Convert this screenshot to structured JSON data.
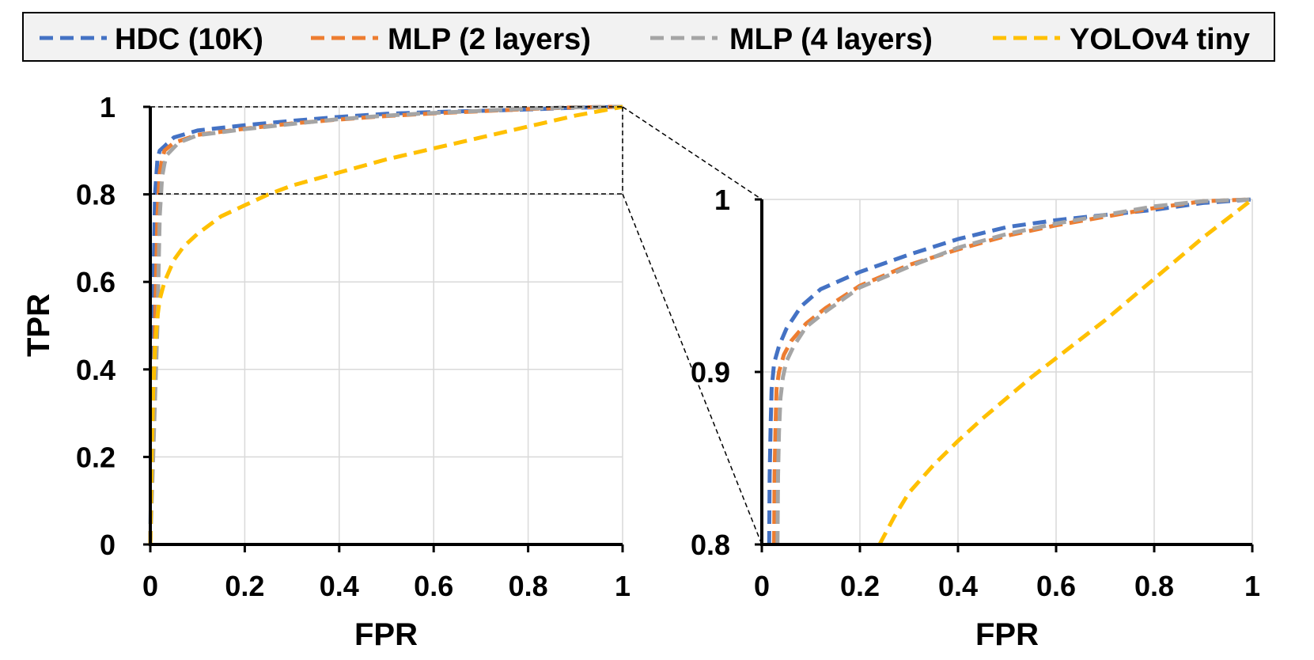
{
  "legend": {
    "entries": [
      {
        "label": "HDC (10K)",
        "color": "#4472C4"
      },
      {
        "label": "MLP (2 layers)",
        "color": "#ED7D31"
      },
      {
        "label": "MLP (4 layers)",
        "color": "#A5A5A5"
      },
      {
        "label": "YOLOv4 tiny",
        "color": "#FFC000"
      }
    ]
  },
  "chart_data": [
    {
      "type": "line",
      "title": "",
      "xlabel": "FPR",
      "ylabel": "TPR",
      "xlim": [
        0,
        1
      ],
      "ylim": [
        0,
        1
      ],
      "x_ticks": [
        "0",
        "0.2",
        "0.4",
        "0.6",
        "0.8",
        "1"
      ],
      "y_ticks": [
        "0",
        "0.2",
        "0.4",
        "0.6",
        "0.8",
        "1"
      ],
      "grid": true,
      "legend_placement": "top",
      "zoom_region": {
        "x": [
          0,
          1
        ],
        "y": [
          0.8,
          1
        ]
      },
      "series": [
        {
          "name": "HDC (10K)",
          "color": "#4472C4",
          "x": [
            0,
            0.005,
            0.01,
            0.015,
            0.02,
            0.03,
            0.05,
            0.1,
            0.2,
            0.3,
            0.4,
            0.5,
            0.6,
            0.7,
            0.8,
            0.9,
            1.0
          ],
          "y": [
            0,
            0.5,
            0.8,
            0.88,
            0.9,
            0.91,
            0.93,
            0.946,
            0.958,
            0.968,
            0.977,
            0.984,
            0.988,
            0.991,
            0.994,
            0.998,
            1.0
          ]
        },
        {
          "name": "MLP (2 layers)",
          "color": "#ED7D31",
          "x": [
            0,
            0.01,
            0.015,
            0.02,
            0.025,
            0.03,
            0.05,
            0.1,
            0.2,
            0.3,
            0.4,
            0.5,
            0.6,
            0.7,
            0.8,
            0.9,
            1.0
          ],
          "y": [
            0,
            0.5,
            0.75,
            0.85,
            0.88,
            0.9,
            0.918,
            0.936,
            0.95,
            0.962,
            0.971,
            0.979,
            0.985,
            0.99,
            0.995,
            0.999,
            1.0
          ]
        },
        {
          "name": "MLP (4 layers)",
          "color": "#A5A5A5",
          "x": [
            0,
            0.015,
            0.02,
            0.025,
            0.03,
            0.035,
            0.06,
            0.1,
            0.2,
            0.3,
            0.4,
            0.5,
            0.6,
            0.7,
            0.8,
            0.9,
            1.0
          ],
          "y": [
            0,
            0.5,
            0.75,
            0.84,
            0.87,
            0.89,
            0.918,
            0.935,
            0.949,
            0.961,
            0.972,
            0.98,
            0.986,
            0.991,
            0.996,
            0.999,
            1.0
          ]
        },
        {
          "name": "YOLOv4 tiny",
          "color": "#FFC000",
          "x": [
            0,
            0.003,
            0.006,
            0.01,
            0.015,
            0.02,
            0.03,
            0.05,
            0.07,
            0.1,
            0.15,
            0.2,
            0.25,
            0.3,
            0.4,
            0.5,
            0.6,
            0.7,
            0.8,
            0.9,
            1.0
          ],
          "y": [
            0,
            0.2,
            0.35,
            0.45,
            0.52,
            0.56,
            0.6,
            0.65,
            0.68,
            0.71,
            0.75,
            0.775,
            0.8,
            0.82,
            0.85,
            0.88,
            0.905,
            0.93,
            0.955,
            0.98,
            1.0
          ]
        }
      ]
    },
    {
      "type": "line",
      "title": "",
      "xlabel": "FPR",
      "ylabel": "",
      "xlim": [
        0,
        1
      ],
      "ylim": [
        0.8,
        1
      ],
      "x_ticks": [
        "0",
        "0.2",
        "0.4",
        "0.6",
        "0.8",
        "1"
      ],
      "y_ticks": [
        "0.8",
        "0.9",
        "1"
      ],
      "grid": true,
      "series": [
        {
          "name": "HDC (10K)",
          "color": "#4472C4",
          "x": [
            0.015,
            0.016,
            0.018,
            0.02,
            0.025,
            0.035,
            0.05,
            0.08,
            0.12,
            0.2,
            0.3,
            0.4,
            0.5,
            0.6,
            0.7,
            0.8,
            0.9,
            1.0
          ],
          "y": [
            0.8,
            0.84,
            0.87,
            0.89,
            0.905,
            0.915,
            0.925,
            0.938,
            0.948,
            0.958,
            0.968,
            0.977,
            0.984,
            0.988,
            0.991,
            0.994,
            0.998,
            1.0
          ]
        },
        {
          "name": "MLP (2 layers)",
          "color": "#ED7D31",
          "x": [
            0.025,
            0.026,
            0.028,
            0.03,
            0.035,
            0.045,
            0.06,
            0.09,
            0.13,
            0.2,
            0.3,
            0.4,
            0.5,
            0.6,
            0.7,
            0.8,
            0.9,
            1.0
          ],
          "y": [
            0.8,
            0.84,
            0.87,
            0.89,
            0.9,
            0.91,
            0.918,
            0.928,
            0.937,
            0.95,
            0.962,
            0.971,
            0.979,
            0.985,
            0.99,
            0.995,
            0.999,
            1.0
          ]
        },
        {
          "name": "MLP (4 layers)",
          "color": "#A5A5A5",
          "x": [
            0.032,
            0.033,
            0.035,
            0.038,
            0.043,
            0.05,
            0.065,
            0.09,
            0.13,
            0.2,
            0.3,
            0.4,
            0.5,
            0.6,
            0.7,
            0.8,
            0.9,
            1.0
          ],
          "y": [
            0.8,
            0.84,
            0.865,
            0.885,
            0.897,
            0.906,
            0.915,
            0.926,
            0.935,
            0.949,
            0.961,
            0.972,
            0.98,
            0.986,
            0.991,
            0.996,
            0.999,
            1.0
          ]
        },
        {
          "name": "YOLOv4 tiny",
          "color": "#FFC000",
          "x": [
            0.24,
            0.27,
            0.3,
            0.35,
            0.4,
            0.45,
            0.5,
            0.55,
            0.6,
            0.7,
            0.8,
            0.9,
            1.0
          ],
          "y": [
            0.8,
            0.816,
            0.83,
            0.846,
            0.86,
            0.873,
            0.885,
            0.897,
            0.908,
            0.93,
            0.954,
            0.978,
            1.0
          ]
        }
      ]
    }
  ]
}
